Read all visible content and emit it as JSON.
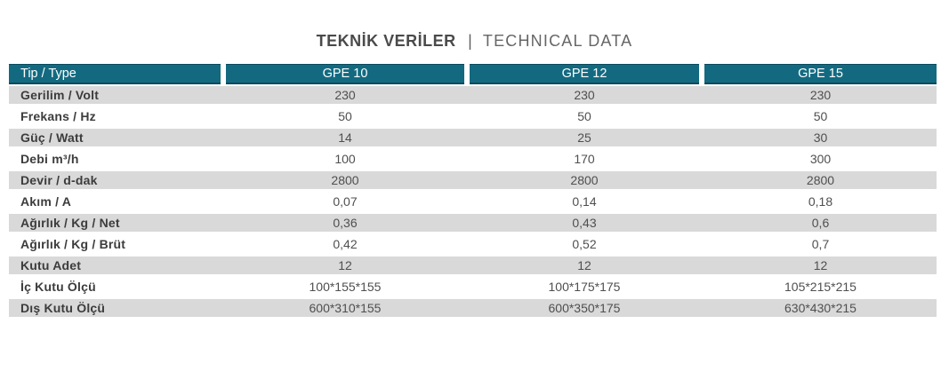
{
  "title": {
    "primary": "TEKNİK VERİLER",
    "separator": "|",
    "secondary": "TECHNICAL DATA"
  },
  "table": {
    "header": {
      "label": "Tip / Type",
      "columns": [
        "GPE 10",
        "GPE 12",
        "GPE 15"
      ]
    },
    "rows": [
      {
        "label": "Gerilim / Volt",
        "values": [
          "230",
          "230",
          "230"
        ]
      },
      {
        "label": "Frekans / Hz",
        "values": [
          "50",
          "50",
          "50"
        ]
      },
      {
        "label": "Güç / Watt",
        "values": [
          "14",
          "25",
          "30"
        ]
      },
      {
        "label": "Debi m³/h",
        "values": [
          "100",
          "170",
          "300"
        ]
      },
      {
        "label": "Devir / d-dak",
        "values": [
          "2800",
          "2800",
          "2800"
        ]
      },
      {
        "label": "Akım / A",
        "values": [
          "0,07",
          "0,14",
          "0,18"
        ]
      },
      {
        "label": "Ağırlık / Kg / Net",
        "values": [
          "0,36",
          "0,43",
          "0,6"
        ]
      },
      {
        "label": "Ağırlık / Kg / Brüt",
        "values": [
          "0,42",
          "0,52",
          "0,7"
        ]
      },
      {
        "label": "Kutu Adet",
        "values": [
          "12",
          "12",
          "12"
        ]
      },
      {
        "label": "İç Kutu Ölçü",
        "values": [
          "100*155*155",
          "100*175*175",
          "105*215*215"
        ]
      },
      {
        "label": "Dış Kutu Ölçü",
        "values": [
          "600*310*155",
          "600*350*175",
          "630*430*215"
        ]
      }
    ]
  },
  "colors": {
    "header_bg": "#136a80",
    "header_text": "#ffffff",
    "alt_row_bg": "#d9d9d9",
    "label_text": "#3c3c3c",
    "value_text": "#4f4f4f"
  }
}
